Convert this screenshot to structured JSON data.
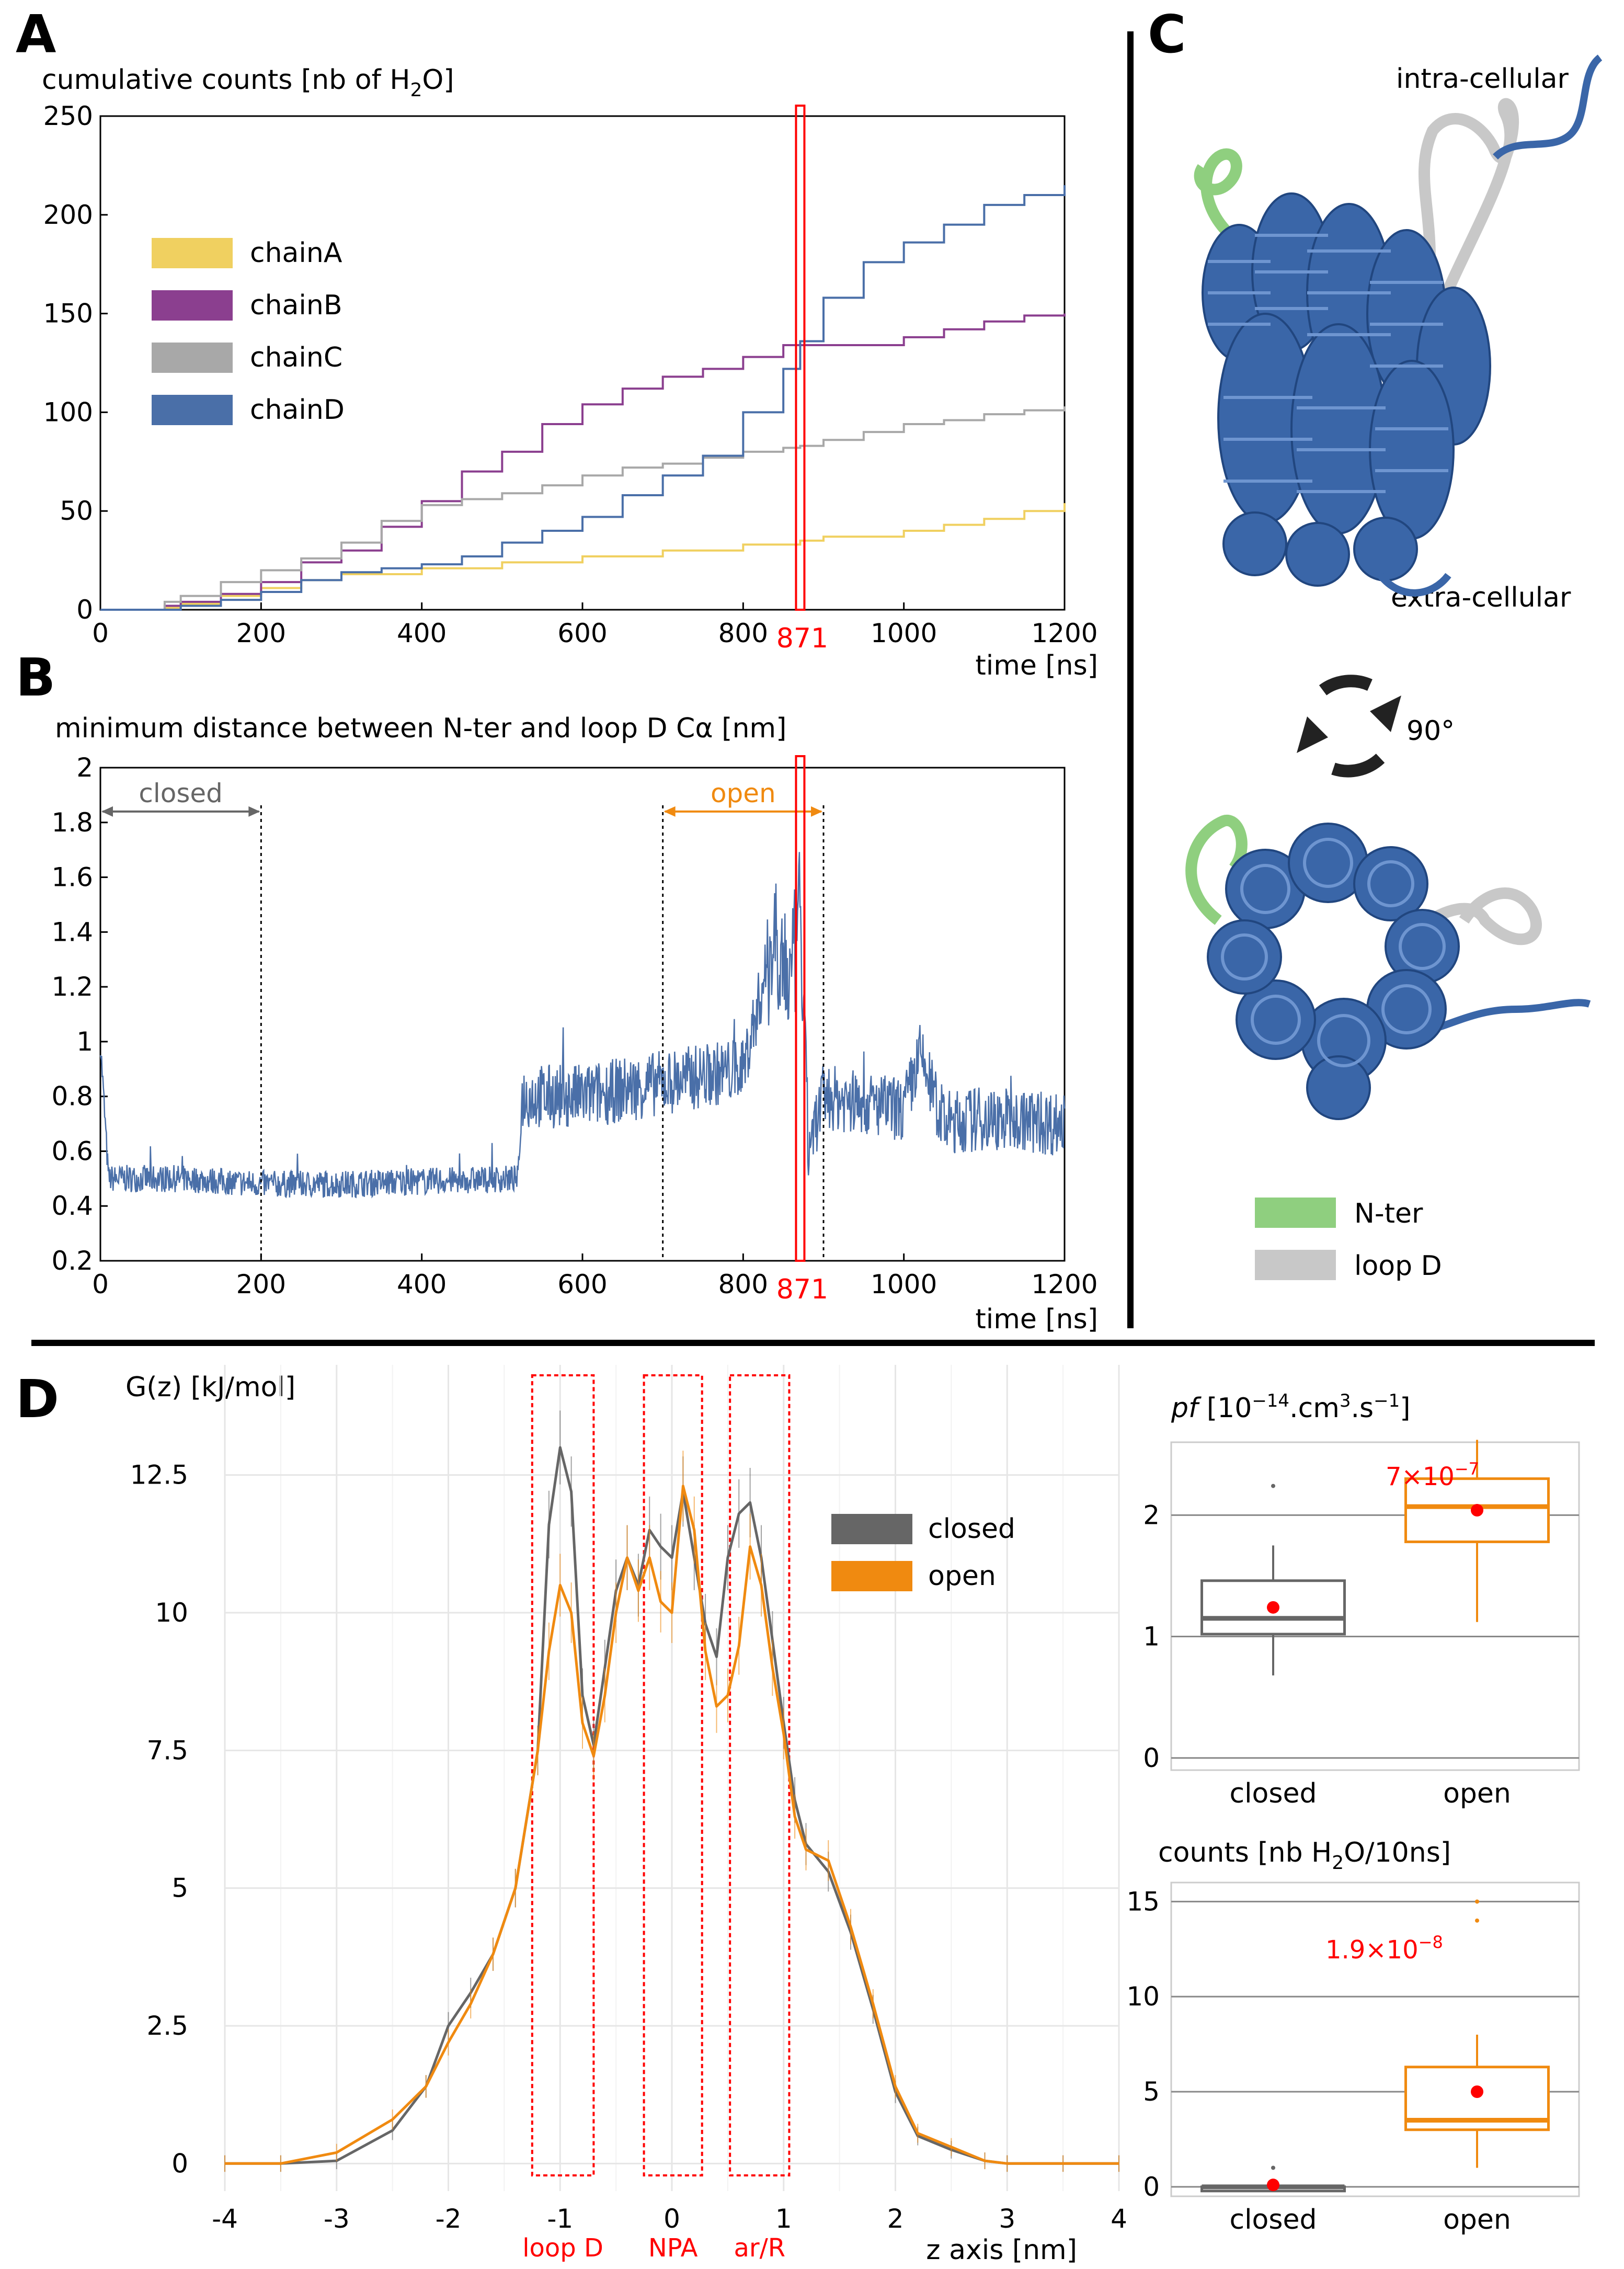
{
  "panel_labels": {
    "a": "A",
    "b": "B",
    "c": "C",
    "d": "D"
  },
  "colors": {
    "chainA": "#f0d060",
    "chainB": "#8b3f8f",
    "chainC": "#a8a8a8",
    "chainD": "#4a6fa8",
    "closed": "#666666",
    "open": "#f08a10",
    "red": "#ff0000",
    "nter": "#8fcf7f",
    "loopd": "#c8c8c8",
    "protein": "#3a66a8"
  },
  "chart_data": [
    {
      "id": "A",
      "type": "line",
      "title": "cumulative counts [nb of H",
      "title_sub": "2",
      "title_end": "O]",
      "xlabel": "time [ns]",
      "xlim": [
        0,
        1200
      ],
      "ylim": [
        0,
        250
      ],
      "xticks": [
        0,
        200,
        400,
        600,
        800,
        1000,
        1200
      ],
      "xtick_labels": [
        "0",
        "200",
        "400",
        "600",
        "800",
        "1000",
        "1200"
      ],
      "yticks": [
        0,
        50,
        100,
        150,
        200,
        250
      ],
      "ytick_labels": [
        "0",
        "50",
        "100",
        "150",
        "200",
        "250"
      ],
      "highlight_label": "871",
      "highlight_x": 871,
      "legend": [
        "chainA",
        "chainB",
        "chainC",
        "chainD"
      ],
      "series": [
        {
          "name": "chainA",
          "key": "chainA",
          "x": [
            0,
            80,
            100,
            150,
            200,
            250,
            300,
            400,
            500,
            600,
            700,
            800,
            871,
            900,
            1000,
            1050,
            1100,
            1150,
            1200
          ],
          "y": [
            0,
            1,
            3,
            7,
            11,
            15,
            18,
            21,
            24,
            27,
            30,
            33,
            35,
            37,
            40,
            43,
            46,
            50,
            54
          ]
        },
        {
          "name": "chainB",
          "key": "chainB",
          "x": [
            0,
            80,
            100,
            150,
            200,
            250,
            300,
            350,
            400,
            450,
            500,
            550,
            600,
            650,
            700,
            750,
            800,
            850,
            871,
            900,
            1000,
            1050,
            1100,
            1150,
            1200
          ],
          "y": [
            0,
            2,
            4,
            8,
            14,
            24,
            30,
            42,
            55,
            70,
            80,
            94,
            104,
            112,
            118,
            122,
            128,
            134,
            134,
            134,
            138,
            142,
            146,
            149,
            150
          ]
        },
        {
          "name": "chainC",
          "key": "chainC",
          "x": [
            0,
            80,
            100,
            150,
            200,
            250,
            300,
            350,
            400,
            450,
            500,
            550,
            600,
            650,
            700,
            750,
            800,
            850,
            871,
            900,
            950,
            1000,
            1050,
            1100,
            1150,
            1200
          ],
          "y": [
            0,
            4,
            7,
            14,
            20,
            26,
            34,
            45,
            53,
            56,
            59,
            63,
            68,
            72,
            74,
            77,
            80,
            82,
            83,
            86,
            90,
            94,
            96,
            99,
            101,
            103
          ]
        },
        {
          "name": "chainD",
          "key": "chainD",
          "x": [
            0,
            100,
            150,
            200,
            250,
            300,
            350,
            400,
            450,
            500,
            550,
            600,
            650,
            700,
            750,
            800,
            850,
            871,
            900,
            950,
            1000,
            1050,
            1100,
            1150,
            1200
          ],
          "y": [
            0,
            2,
            5,
            9,
            15,
            19,
            21,
            23,
            27,
            34,
            40,
            47,
            58,
            68,
            78,
            100,
            122,
            136,
            158,
            176,
            186,
            195,
            205,
            210,
            215
          ]
        }
      ]
    },
    {
      "id": "B",
      "type": "line",
      "title": "minimum distance between N-ter and loop D Cα [nm]",
      "xlabel": "time [ns]",
      "xlim": [
        0,
        1200
      ],
      "ylim": [
        0.2,
        2
      ],
      "xticks": [
        0,
        200,
        400,
        600,
        800,
        1000,
        1200
      ],
      "xtick_labels": [
        "0",
        "200",
        "400",
        "600",
        "800",
        "1000",
        "1200"
      ],
      "yticks": [
        0.2,
        0.4,
        0.6,
        0.8,
        1.0,
        1.2,
        1.4,
        1.6,
        1.8,
        2.0
      ],
      "ytick_labels": [
        "0.2",
        "0.4",
        "0.6",
        "0.8",
        "1",
        "1.2",
        "1.4",
        "1.6",
        "1.8",
        "2"
      ],
      "highlight_label": "871",
      "highlight_x": 871,
      "annotations": [
        {
          "label": "closed",
          "x0": 0,
          "x1": 200,
          "y": 1.84,
          "key": "closed"
        },
        {
          "label": "open",
          "x0": 700,
          "x1": 900,
          "y": 1.84,
          "key": "open"
        }
      ],
      "vlines": [
        200,
        700,
        900
      ],
      "series": [
        {
          "name": "distance",
          "key": "chainD",
          "x": [
            0,
            10,
            100,
            200,
            300,
            400,
            520,
            525,
            600,
            700,
            800,
            840,
            860,
            871,
            880,
            900,
            1000,
            1020,
            1050,
            1100,
            1200
          ],
          "y": [
            1.0,
            0.5,
            0.5,
            0.48,
            0.48,
            0.49,
            0.5,
            0.8,
            0.8,
            0.85,
            0.9,
            1.4,
            1.2,
            1.5,
            0.6,
            0.8,
            0.75,
            0.95,
            0.7,
            0.72,
            0.7
          ]
        }
      ]
    },
    {
      "id": "D",
      "type": "line",
      "title": "G(z) [kJ/mol]",
      "xlabel": "z axis [nm]",
      "xlim": [
        -4,
        4
      ],
      "ylim": [
        -0.5,
        14.5
      ],
      "xticks": [
        -4,
        -3,
        -2,
        -1,
        0,
        1,
        2,
        3,
        4
      ],
      "xtick_labels": [
        "-4",
        "-3",
        "-2",
        "-1",
        "0",
        "1",
        "2",
        "3",
        "4"
      ],
      "yticks": [
        0,
        2.5,
        5,
        7.5,
        10,
        12.5
      ],
      "ytick_labels": [
        "0",
        "2.5",
        "5",
        "7.5",
        "10",
        "12.5"
      ],
      "regions": [
        {
          "label": "loop D",
          "x0": -1.25,
          "x1": -0.7
        },
        {
          "label": "NPA",
          "x0": -0.25,
          "x1": 0.27
        },
        {
          "label": "ar/R",
          "x0": 0.52,
          "x1": 1.05
        }
      ],
      "legend": [
        "closed",
        "open"
      ],
      "series": [
        {
          "name": "closed",
          "key": "closed",
          "x": [
            -4,
            -3.5,
            -3,
            -2.5,
            -2.2,
            -2.0,
            -1.8,
            -1.6,
            -1.4,
            -1.2,
            -1.1,
            -1.0,
            -0.9,
            -0.8,
            -0.7,
            -0.6,
            -0.5,
            -0.4,
            -0.3,
            -0.2,
            -0.1,
            0.0,
            0.1,
            0.2,
            0.3,
            0.4,
            0.5,
            0.6,
            0.7,
            0.8,
            0.9,
            1.0,
            1.1,
            1.2,
            1.4,
            1.6,
            1.8,
            2.0,
            2.2,
            2.5,
            2.8,
            3.0,
            3.5,
            4.0
          ],
          "y": [
            0,
            0,
            0.05,
            0.6,
            1.4,
            2.5,
            3.1,
            3.8,
            5.0,
            7.5,
            11.6,
            13.0,
            12.2,
            8.5,
            7.6,
            9.0,
            10.4,
            11.0,
            10.5,
            11.5,
            11.2,
            11.0,
            12.2,
            11.0,
            9.8,
            9.2,
            11.0,
            11.8,
            12.0,
            11.0,
            9.5,
            8.0,
            6.6,
            5.8,
            5.3,
            4.2,
            2.8,
            1.3,
            0.5,
            0.25,
            0.05,
            0,
            0,
            0
          ]
        },
        {
          "name": "open",
          "key": "open",
          "x": [
            -4,
            -3.5,
            -3,
            -2.5,
            -2.2,
            -2.0,
            -1.8,
            -1.6,
            -1.4,
            -1.2,
            -1.1,
            -1.0,
            -0.9,
            -0.8,
            -0.7,
            -0.6,
            -0.5,
            -0.4,
            -0.3,
            -0.2,
            -0.1,
            0.0,
            0.1,
            0.2,
            0.3,
            0.4,
            0.5,
            0.6,
            0.7,
            0.8,
            0.9,
            1.0,
            1.1,
            1.2,
            1.4,
            1.6,
            1.8,
            2.0,
            2.2,
            2.5,
            2.8,
            3.0,
            3.5,
            4.0
          ],
          "y": [
            0,
            0,
            0.2,
            0.8,
            1.4,
            2.2,
            2.9,
            3.8,
            5.0,
            7.5,
            9.3,
            10.5,
            10.0,
            8.0,
            7.4,
            8.5,
            10.0,
            11.0,
            10.4,
            11.0,
            10.2,
            10.0,
            12.3,
            11.5,
            9.3,
            8.3,
            8.5,
            9.4,
            11.2,
            10.5,
            9.0,
            7.8,
            6.3,
            5.7,
            5.5,
            4.3,
            2.9,
            1.4,
            0.55,
            0.3,
            0.05,
            0,
            0,
            0
          ]
        }
      ]
    },
    {
      "id": "pf",
      "type": "box",
      "title": "pf",
      "title_rest": " [10",
      "title_sup": "−14",
      "title_mid": ".cm",
      "title_sup2": "3",
      "title_mid2": ".s",
      "title_sup3": "−1",
      "title_end": "]",
      "ylim": [
        -0.1,
        2.6
      ],
      "yticks": [
        0,
        1,
        2
      ],
      "ytick_labels": [
        "0",
        "1",
        "2"
      ],
      "categories": [
        "closed",
        "open"
      ],
      "pvalue": "7×10",
      "pvalue_sup": "−7",
      "boxes": [
        {
          "name": "closed",
          "key": "closed",
          "min": 0.68,
          "q1": 1.02,
          "median": 1.15,
          "q3": 1.46,
          "max": 1.75,
          "mean": 1.24,
          "outliers": [
            2.24
          ]
        },
        {
          "name": "open",
          "key": "open",
          "min": 1.12,
          "q1": 1.78,
          "median": 2.07,
          "q3": 2.3,
          "max": 2.62,
          "mean": 2.04,
          "outliers": []
        }
      ]
    },
    {
      "id": "counts",
      "type": "box",
      "title": "counts [nb H",
      "title_sub": "2",
      "title_end": "O/10ns]",
      "ylim": [
        -0.5,
        16
      ],
      "yticks": [
        0,
        5,
        10,
        15
      ],
      "ytick_labels": [
        "0",
        "5",
        "10",
        "15"
      ],
      "categories": [
        "closed",
        "open"
      ],
      "pvalue": "1.9×10",
      "pvalue_sup": "−8",
      "boxes": [
        {
          "name": "closed",
          "key": "closed",
          "min": 0,
          "q1": 0,
          "median": 0,
          "q3": 0,
          "max": 0,
          "mean": 0.1,
          "outliers": [
            1
          ]
        },
        {
          "name": "open",
          "key": "open",
          "min": 1,
          "q1": 3,
          "median": 3.5,
          "q3": 6.3,
          "max": 8,
          "mean": 5,
          "outliers": [
            14,
            15
          ]
        }
      ]
    }
  ],
  "structure": {
    "label_intra": "intra-cellular",
    "label_extra": "extra-cellular",
    "rotation_label": "90°",
    "legend": [
      {
        "name": "N-ter",
        "key": "nter"
      },
      {
        "name": "loop D",
        "key": "loopd"
      }
    ]
  }
}
